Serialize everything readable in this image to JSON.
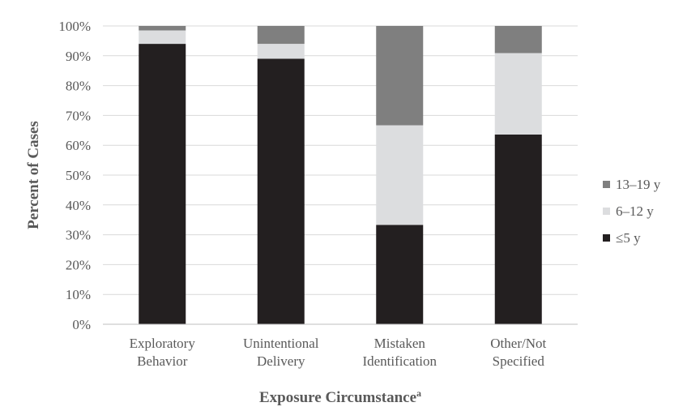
{
  "chart_data": {
    "type": "bar",
    "stacked": true,
    "percent": true,
    "categories": [
      "Exploratory Behavior",
      "Unintentional Delivery",
      "Mistaken Identification",
      "Other/Not Specified"
    ],
    "category_lines": [
      [
        "Exploratory",
        "Behavior"
      ],
      [
        "Unintentional",
        "Delivery"
      ],
      [
        "Mistaken",
        "Identification"
      ],
      [
        "Other/Not",
        "Specified"
      ]
    ],
    "series": [
      {
        "name": "≤5 y",
        "values": [
          94,
          89,
          33.3,
          63.6
        ],
        "color": "#231f20"
      },
      {
        "name": "6–12 y",
        "values": [
          4.5,
          5,
          33.4,
          27.3
        ],
        "color": "#dcdddf"
      },
      {
        "name": "13–19 y",
        "values": [
          1.5,
          6,
          33.3,
          9.1
        ],
        "color": "#7f7f7f"
      }
    ],
    "legend_order": [
      "13–19 y",
      "6–12 y",
      "≤5 y"
    ],
    "ylim": [
      0,
      100
    ],
    "yticks": [
      "0%",
      "10%",
      "20%",
      "30%",
      "40%",
      "50%",
      "60%",
      "70%",
      "80%",
      "90%",
      "100%"
    ],
    "ylabel": "Percent of Cases",
    "xlabel": "Exposure Circumstance",
    "xlabel_superscript": "a",
    "grid": true,
    "legend_position": "right"
  }
}
